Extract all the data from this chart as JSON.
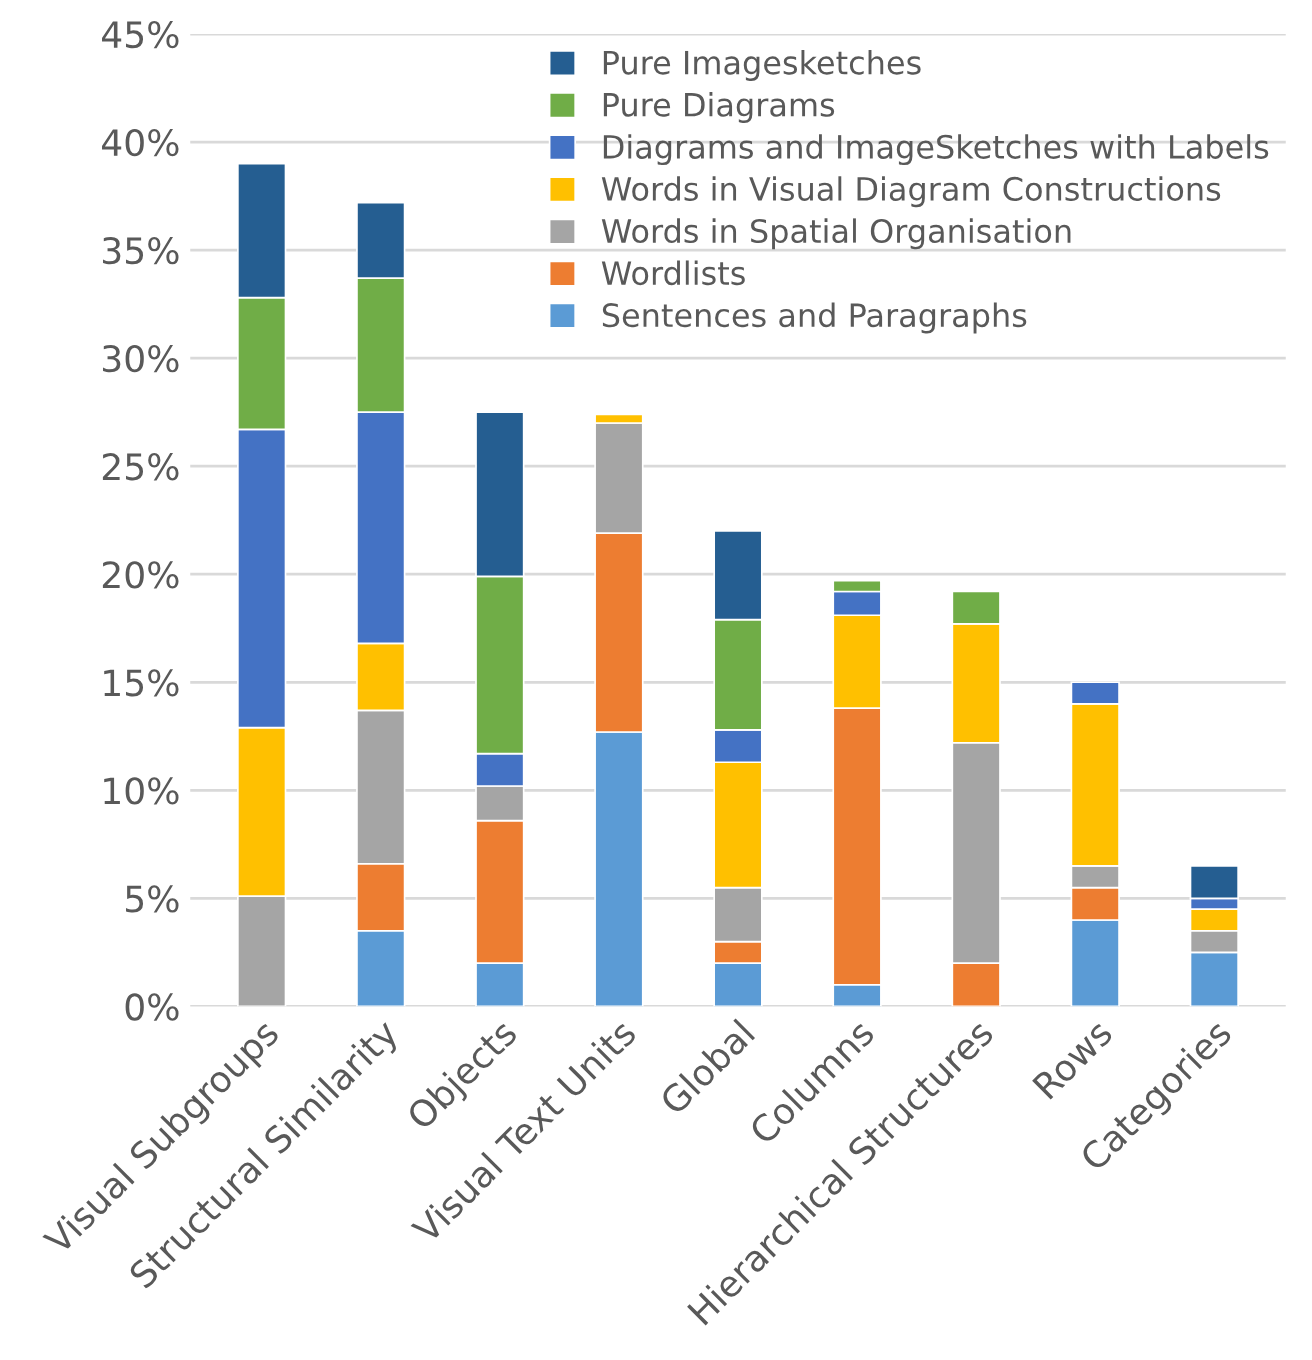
{
  "chart_data": {
    "type": "bar",
    "stacked": true,
    "categories": [
      "Visual Subgroups",
      "Structural Similarity",
      "Objects",
      "Visual Text Units",
      "Global",
      "Columns",
      "Hierarchical Structures",
      "Rows",
      "Categories"
    ],
    "series": [
      {
        "name": "Sentences and Paragraphs",
        "color": "#5b9bd5",
        "values": [
          null,
          3.5,
          2.0,
          12.7,
          2.0,
          1.0,
          null,
          4.0,
          2.5
        ]
      },
      {
        "name": "Wordlists",
        "color": "#ed7d31",
        "values": [
          null,
          3.1,
          6.6,
          9.2,
          1.0,
          12.8,
          2.0,
          1.5,
          null
        ]
      },
      {
        "name": "Words in Spatial Organisation",
        "color": "#a5a5a5",
        "values": [
          5.1,
          7.1,
          1.6,
          5.1,
          2.5,
          null,
          10.2,
          1.0,
          1.0
        ]
      },
      {
        "name": "Words in Visual Diagram Constructions",
        "color": "#ffc000",
        "values": [
          7.8,
          3.1,
          null,
          0.4,
          5.8,
          4.3,
          5.5,
          7.5,
          1.0
        ]
      },
      {
        "name": "Diagrams and ImageSketches with Labels",
        "color": "#4472c4",
        "values": [
          13.8,
          10.7,
          1.5,
          null,
          1.5,
          1.1,
          null,
          1.0,
          0.5
        ]
      },
      {
        "name": "Pure Diagrams",
        "color": "#70ad47",
        "values": [
          6.1,
          6.2,
          8.2,
          null,
          5.1,
          0.5,
          1.5,
          null,
          null
        ]
      },
      {
        "name": "Pure Imagesketches",
        "color": "#255e91",
        "values": [
          6.2,
          3.5,
          7.6,
          null,
          4.1,
          null,
          null,
          null,
          1.5
        ]
      }
    ],
    "ylim": [
      0,
      45
    ],
    "yticks": [
      {
        "value": 0,
        "label": "0%"
      },
      {
        "value": 5,
        "label": "5%"
      },
      {
        "value": 10,
        "label": "10%"
      },
      {
        "value": 15,
        "label": "15%"
      },
      {
        "value": 20,
        "label": "20%"
      },
      {
        "value": 25,
        "label": "25%"
      },
      {
        "value": 30,
        "label": "30%"
      },
      {
        "value": 35,
        "label": "35%"
      },
      {
        "value": 40,
        "label": "40%"
      },
      {
        "value": 45,
        "label": "45%"
      }
    ],
    "grid": "y",
    "legend": "top right"
  }
}
